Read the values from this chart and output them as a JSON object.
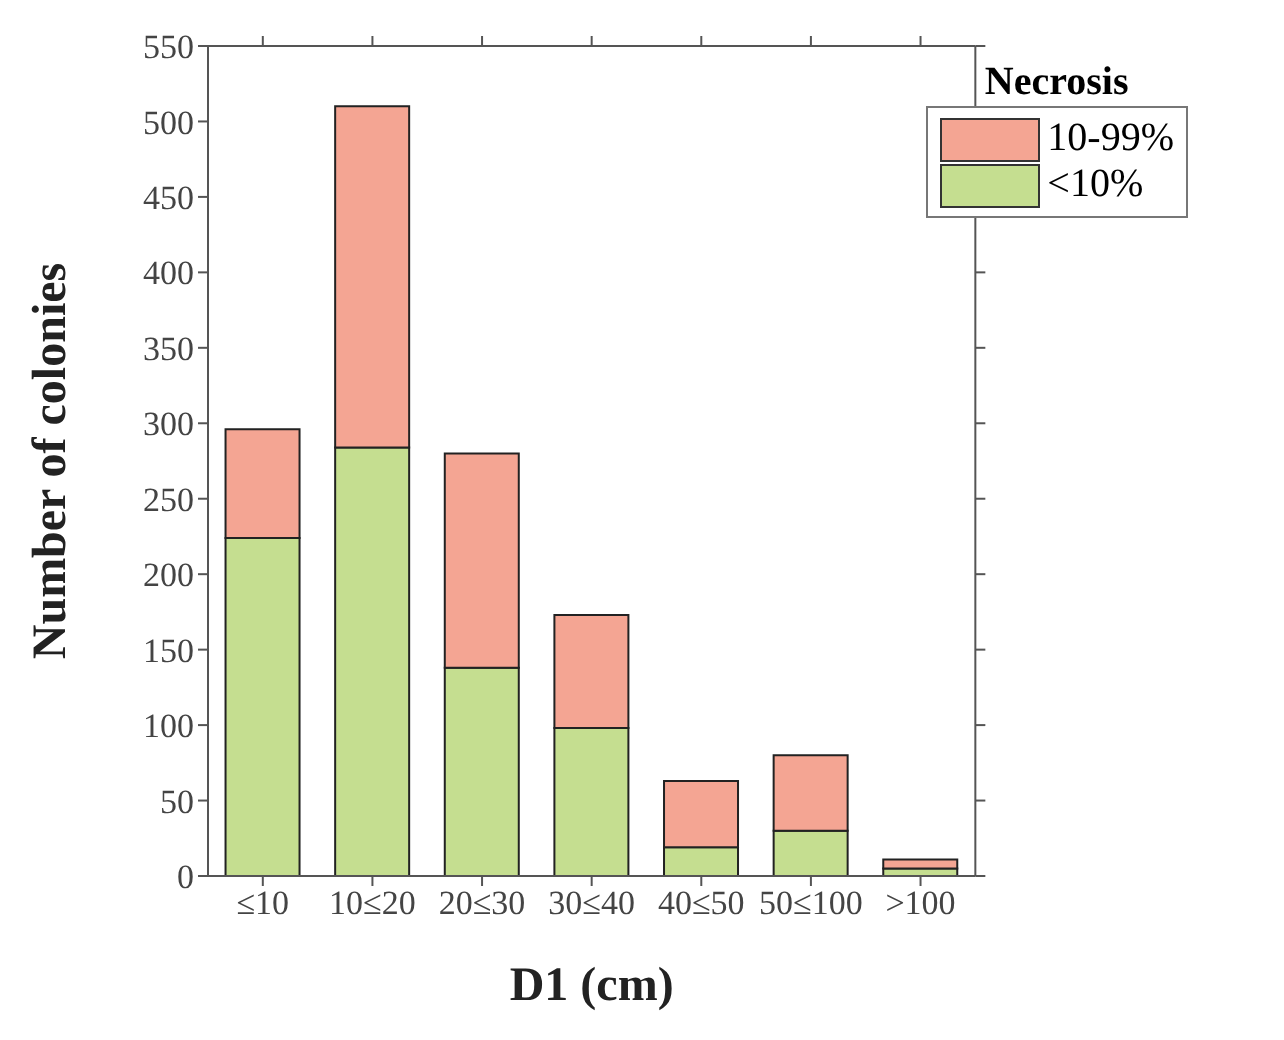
{
  "chart_data": {
    "type": "bar",
    "xlabel": "D1 (cm)",
    "ylabel": "Number of colonies",
    "legend_title": "Necrosis",
    "categories": [
      "≤10",
      "10≤20",
      "20≤30",
      "30≤40",
      "40≤50",
      "50≤100",
      ">100"
    ],
    "series": [
      {
        "name": "<10%",
        "color": "#c5de90",
        "values": [
          224,
          284,
          138,
          98,
          19,
          30,
          5
        ]
      },
      {
        "name": "10-99%",
        "color": "#f4a593",
        "values": [
          72,
          226,
          142,
          75,
          44,
          50,
          6
        ]
      }
    ],
    "stacked": true,
    "ylim": [
      0,
      550
    ],
    "yticks": [
      0,
      50,
      100,
      150,
      200,
      250,
      300,
      350,
      400,
      450,
      500,
      550
    ],
    "grid": false,
    "legend": "top right"
  }
}
